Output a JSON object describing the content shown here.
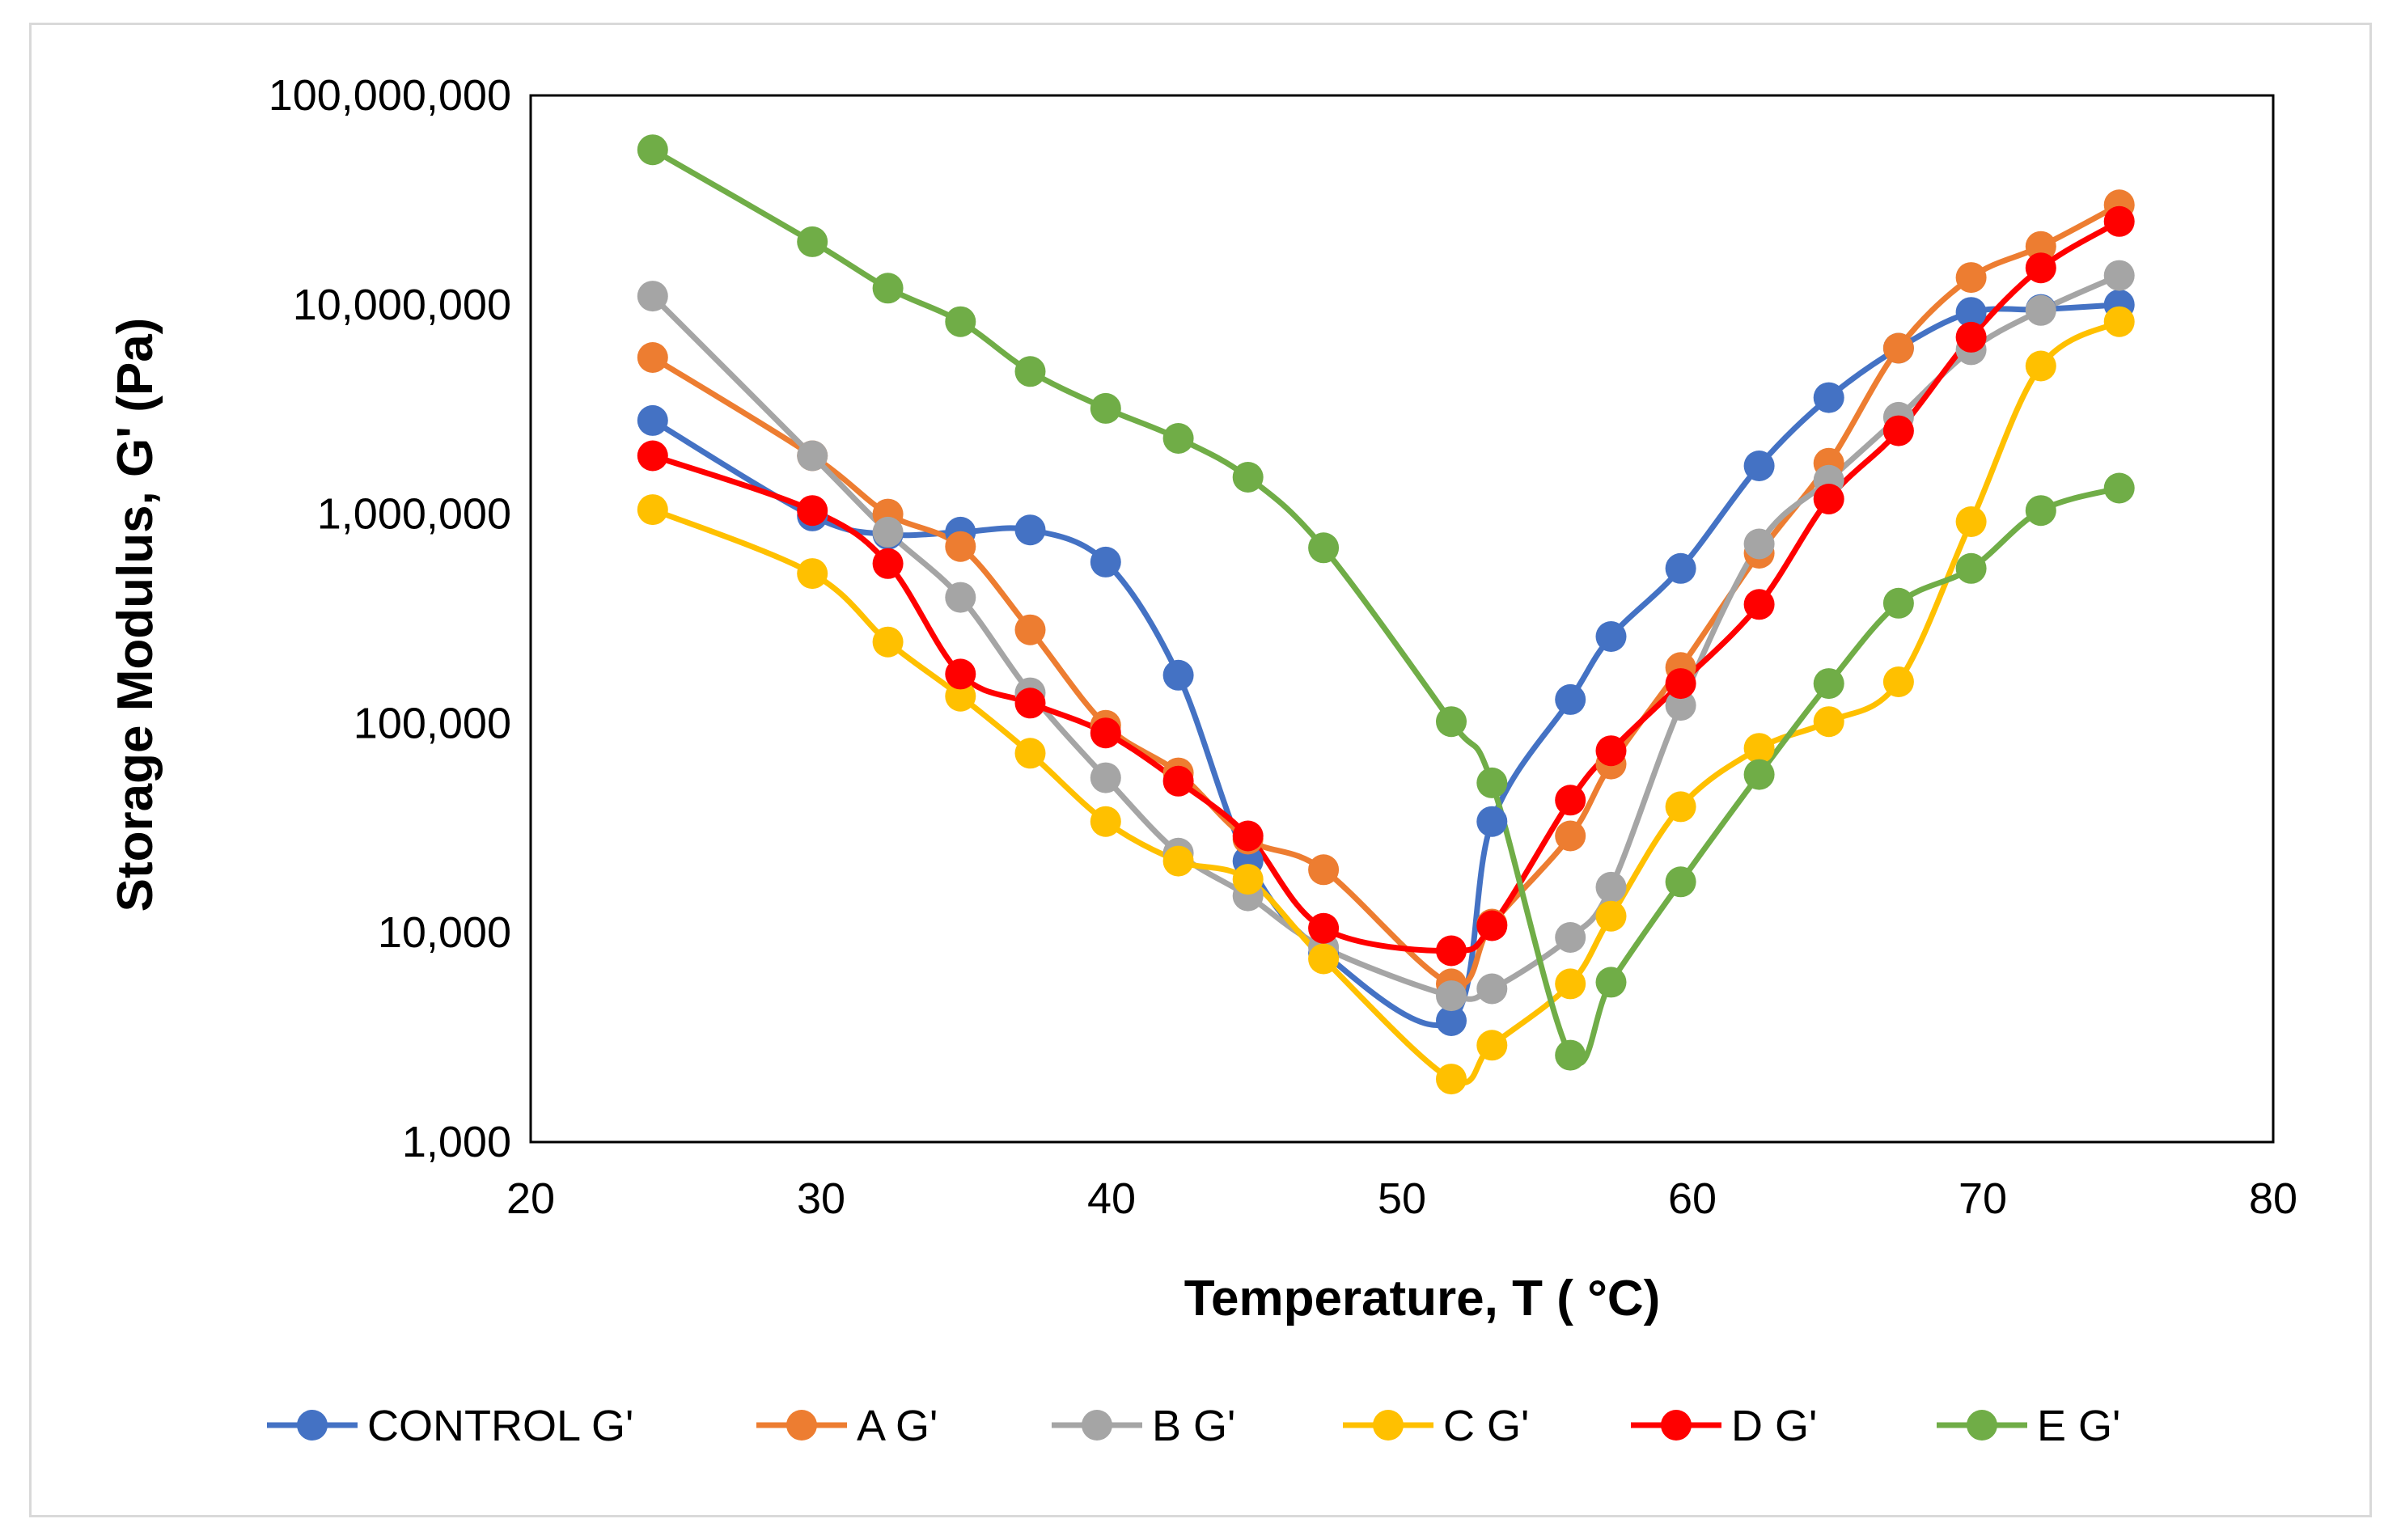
{
  "chart_data": {
    "type": "line",
    "title": "",
    "xlabel": "Temperature, T ( °C)",
    "ylabel": "Storage Modulus, G' (Pa)",
    "xlim": [
      20,
      80
    ],
    "ylim": [
      1000,
      100000000
    ],
    "yscale": "log",
    "x_ticks": [
      20,
      30,
      40,
      50,
      60,
      70,
      80
    ],
    "x_tick_labels": [
      "20",
      "30",
      "40",
      "50",
      "60",
      "70",
      "80"
    ],
    "y_ticks": [
      1000,
      10000,
      100000,
      1000000,
      10000000,
      100000000
    ],
    "y_tick_labels": [
      "1,000",
      "10,000",
      "100,000",
      "1,000,000",
      "10,000,000",
      "100,000,000"
    ],
    "grid": false,
    "legend_position": "bottom",
    "series": [
      {
        "name": "CONTROL G'",
        "color": "#4472C4",
        "x": [
          24.2,
          29.7,
          32.3,
          34.8,
          37.2,
          39.8,
          42.3,
          44.7,
          47.3,
          51.7,
          53.1,
          55.8,
          57.2,
          59.6,
          62.3,
          64.7,
          67.1,
          69.6,
          72.0,
          74.7
        ],
        "y": [
          2800000,
          980000,
          800000,
          820000,
          840000,
          590000,
          170000,
          22000,
          8000,
          3800,
          34000,
          130000,
          260000,
          550000,
          1700000,
          3600000,
          6200000,
          9200000,
          9500000,
          10000000
        ]
      },
      {
        "name": "A G'",
        "color": "#ED7D31",
        "x": [
          24.2,
          29.7,
          32.3,
          34.8,
          37.2,
          39.8,
          42.3,
          44.7,
          47.3,
          51.7,
          53.1,
          55.8,
          57.2,
          59.6,
          62.3,
          64.7,
          67.1,
          69.6,
          72.0,
          74.7
        ],
        "y": [
          5600000,
          1900000,
          1000000,
          700000,
          280000,
          98000,
          58000,
          28000,
          20000,
          5700,
          11000,
          29000,
          64000,
          185000,
          650000,
          1750000,
          6200000,
          13500000,
          19000000,
          30000000
        ]
      },
      {
        "name": "B G'",
        "color": "#A5A5A5",
        "x": [
          24.2,
          29.7,
          32.3,
          34.8,
          37.2,
          39.8,
          42.3,
          44.7,
          47.3,
          51.7,
          53.1,
          55.8,
          57.2,
          59.6,
          62.3,
          64.7,
          67.1,
          69.6,
          72.0,
          74.7
        ],
        "y": [
          11000000,
          1900000,
          820000,
          400000,
          140000,
          55000,
          24000,
          15000,
          8500,
          5000,
          5400,
          9500,
          16500,
          122000,
          720000,
          1450000,
          2900000,
          6100000,
          9400000,
          13800000
        ]
      },
      {
        "name": "C G'",
        "color": "#FFC000",
        "x": [
          24.2,
          29.7,
          32.3,
          34.8,
          37.2,
          39.8,
          42.3,
          44.7,
          47.3,
          51.7,
          53.1,
          55.8,
          57.2,
          59.6,
          62.3,
          64.7,
          67.1,
          69.6,
          72.0,
          74.7
        ],
        "y": [
          1050000,
          520000,
          245000,
          135000,
          72000,
          34000,
          22000,
          18000,
          7500,
          2000,
          2900,
          5700,
          12000,
          40000,
          76000,
          102000,
          158000,
          920000,
          5100000,
          8300000
        ]
      },
      {
        "name": "D G'",
        "color": "#FF0000",
        "x": [
          24.2,
          29.7,
          32.3,
          34.8,
          37.2,
          39.8,
          42.3,
          44.7,
          47.3,
          51.7,
          53.1,
          55.8,
          57.2,
          59.6,
          62.3,
          64.7,
          67.1,
          69.6,
          72.0,
          74.7
        ],
        "y": [
          1900000,
          1040000,
          580000,
          172000,
          125000,
          90000,
          53000,
          29000,
          10500,
          8200,
          10800,
          43000,
          74000,
          155000,
          370000,
          1180000,
          2500000,
          7000000,
          15000000,
          25000000
        ]
      },
      {
        "name": "E G'",
        "color": "#70AD47",
        "x": [
          24.2,
          29.7,
          32.3,
          34.8,
          37.2,
          39.8,
          42.3,
          44.7,
          47.3,
          51.7,
          53.1,
          55.8,
          57.2,
          59.6,
          62.3,
          64.7,
          67.1,
          69.6,
          72.0,
          74.7
        ],
        "y": [
          55000000,
          20000000,
          12000000,
          8300000,
          4800000,
          3200000,
          2300000,
          1500000,
          690000,
          102000,
          52000,
          2600,
          5800,
          17500,
          57000,
          155000,
          375000,
          550000,
          1040000,
          1330000
        ]
      }
    ]
  }
}
